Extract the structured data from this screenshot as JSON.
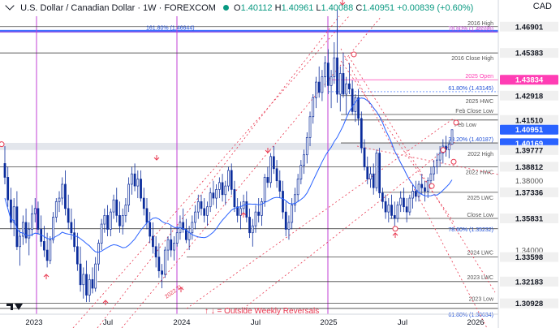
{
  "header": {
    "symbol": "U.S. Dollar / Canadian Dollar · 1W · FOREXCOM",
    "open_label": "O",
    "open": "1.40112",
    "high_label": "H",
    "high": "1.40961",
    "low_label": "L",
    "low": "1.40088",
    "close_label": "C",
    "close": "1.40951",
    "change": "+0.00839 (+0.60%)"
  },
  "currency": "CAD",
  "colors": {
    "up": "#0b2c9c",
    "down": "#0b2c9c",
    "ma": "#2962ff",
    "level_line": "#444444",
    "magenta": "#c23fd6",
    "red": "#e8374f",
    "blue_band": "#2962ff",
    "pink_tag": "#ff3db4",
    "blue_tag": "#2962ff"
  },
  "note": "↑ ↓ = Outside Weekly Reversals",
  "chart_data": {
    "type": "candlestick",
    "title": "U.S. Dollar / Canadian Dollar · 1W · FOREXCOM",
    "ylim": [
      1.303,
      1.475
    ],
    "x_ticks": [
      "2023",
      "Jul",
      "2024",
      "Jul",
      "2025",
      "Jul",
      "2026"
    ],
    "y_axis_labels": [
      "1.46901",
      "1.45383",
      "1.43834",
      "1.42918",
      "1.41510",
      "1.40951",
      "1.40169",
      "1.39777",
      "1.38812",
      "1.38000",
      "1.37336",
      "1.35831",
      "1.34000",
      "1.33598",
      "1.32183",
      "1.30928"
    ],
    "levels": [
      {
        "name": "2016 High",
        "value": 1.46901
      },
      {
        "name": "78.60% (1.46596)",
        "value": 1.46596
      },
      {
        "name": "161.80% (1.46644)",
        "value": 1.46644
      },
      {
        "name": "2016 Close High",
        "value": 1.45383
      },
      {
        "name": "2025 Open",
        "value": 1.43834
      },
      {
        "name": "61.80% (1.43145)",
        "value": 1.43145
      },
      {
        "name": "2025 HWC",
        "value": 1.42918
      },
      {
        "name": "Feb Close Low",
        "value": 1.4183
      },
      {
        "name": "Feb Low",
        "value": 1.4151
      },
      {
        "name": "38.20% (1.40187)",
        "value": 1.40187
      },
      {
        "name": "2022 High",
        "value": 1.39777
      },
      {
        "name": "2022 HWC",
        "value": 1.38812
      },
      {
        "name": "2025 LWC",
        "value": 1.37336
      },
      {
        "name": "Close Low",
        "value": 1.35831
      },
      {
        "name": "78.60% (1.35232)",
        "value": 1.35232
      },
      {
        "name": "2024 LWC",
        "value": 1.33598
      },
      {
        "name": "2023 LWC",
        "value": 1.32183
      },
      {
        "name": "2023 Low",
        "value": 1.30928
      },
      {
        "name": "61.80% (1.30634)",
        "value": 1.30634
      }
    ],
    "annotations": [
      "2022 TL",
      "↑ ↓ = Outside Weekly Reversals"
    ],
    "candles": [
      {
        "o": 1.39,
        "h": 1.4,
        "l": 1.378,
        "c": 1.382
      },
      {
        "o": 1.382,
        "h": 1.388,
        "l": 1.365,
        "c": 1.369
      },
      {
        "o": 1.369,
        "h": 1.376,
        "l": 1.352,
        "c": 1.356
      },
      {
        "o": 1.356,
        "h": 1.37,
        "l": 1.348,
        "c": 1.365
      },
      {
        "o": 1.365,
        "h": 1.374,
        "l": 1.34,
        "c": 1.342
      },
      {
        "o": 1.342,
        "h": 1.352,
        "l": 1.331,
        "c": 1.348
      },
      {
        "o": 1.348,
        "h": 1.36,
        "l": 1.343,
        "c": 1.356
      },
      {
        "o": 1.356,
        "h": 1.364,
        "l": 1.344,
        "c": 1.347
      },
      {
        "o": 1.347,
        "h": 1.356,
        "l": 1.337,
        "c": 1.352
      },
      {
        "o": 1.352,
        "h": 1.366,
        "l": 1.348,
        "c": 1.361
      },
      {
        "o": 1.361,
        "h": 1.37,
        "l": 1.356,
        "c": 1.364
      },
      {
        "o": 1.364,
        "h": 1.368,
        "l": 1.349,
        "c": 1.352
      },
      {
        "o": 1.352,
        "h": 1.36,
        "l": 1.342,
        "c": 1.345
      },
      {
        "o": 1.345,
        "h": 1.354,
        "l": 1.336,
        "c": 1.34
      },
      {
        "o": 1.34,
        "h": 1.35,
        "l": 1.33,
        "c": 1.334
      },
      {
        "o": 1.334,
        "h": 1.348,
        "l": 1.332,
        "c": 1.346
      },
      {
        "o": 1.346,
        "h": 1.362,
        "l": 1.344,
        "c": 1.359
      },
      {
        "o": 1.359,
        "h": 1.37,
        "l": 1.356,
        "c": 1.368
      },
      {
        "o": 1.368,
        "h": 1.374,
        "l": 1.362,
        "c": 1.37
      },
      {
        "o": 1.37,
        "h": 1.382,
        "l": 1.366,
        "c": 1.378
      },
      {
        "o": 1.378,
        "h": 1.386,
        "l": 1.36,
        "c": 1.364
      },
      {
        "o": 1.364,
        "h": 1.372,
        "l": 1.352,
        "c": 1.356
      },
      {
        "o": 1.356,
        "h": 1.364,
        "l": 1.346,
        "c": 1.35
      },
      {
        "o": 1.35,
        "h": 1.358,
        "l": 1.339,
        "c": 1.342
      },
      {
        "o": 1.342,
        "h": 1.35,
        "l": 1.328,
        "c": 1.332
      },
      {
        "o": 1.332,
        "h": 1.342,
        "l": 1.316,
        "c": 1.32
      },
      {
        "o": 1.32,
        "h": 1.33,
        "l": 1.312,
        "c": 1.326
      },
      {
        "o": 1.326,
        "h": 1.334,
        "l": 1.31,
        "c": 1.314
      },
      {
        "o": 1.314,
        "h": 1.326,
        "l": 1.31,
        "c": 1.323
      },
      {
        "o": 1.323,
        "h": 1.33,
        "l": 1.315,
        "c": 1.318
      },
      {
        "o": 1.318,
        "h": 1.336,
        "l": 1.316,
        "c": 1.332
      },
      {
        "o": 1.332,
        "h": 1.346,
        "l": 1.328,
        "c": 1.344
      },
      {
        "o": 1.344,
        "h": 1.358,
        "l": 1.34,
        "c": 1.355
      },
      {
        "o": 1.355,
        "h": 1.364,
        "l": 1.35,
        "c": 1.36
      },
      {
        "o": 1.36,
        "h": 1.366,
        "l": 1.348,
        "c": 1.352
      },
      {
        "o": 1.352,
        "h": 1.364,
        "l": 1.348,
        "c": 1.362
      },
      {
        "o": 1.362,
        "h": 1.372,
        "l": 1.358,
        "c": 1.369
      },
      {
        "o": 1.369,
        "h": 1.376,
        "l": 1.356,
        "c": 1.36
      },
      {
        "o": 1.36,
        "h": 1.368,
        "l": 1.35,
        "c": 1.354
      },
      {
        "o": 1.354,
        "h": 1.364,
        "l": 1.349,
        "c": 1.36
      },
      {
        "o": 1.36,
        "h": 1.37,
        "l": 1.356,
        "c": 1.366
      },
      {
        "o": 1.366,
        "h": 1.382,
        "l": 1.362,
        "c": 1.378
      },
      {
        "o": 1.378,
        "h": 1.388,
        "l": 1.372,
        "c": 1.384
      },
      {
        "o": 1.384,
        "h": 1.39,
        "l": 1.374,
        "c": 1.377
      },
      {
        "o": 1.377,
        "h": 1.386,
        "l": 1.37,
        "c": 1.381
      },
      {
        "o": 1.381,
        "h": 1.386,
        "l": 1.368,
        "c": 1.37
      },
      {
        "o": 1.37,
        "h": 1.376,
        "l": 1.36,
        "c": 1.364
      },
      {
        "o": 1.364,
        "h": 1.37,
        "l": 1.352,
        "c": 1.356
      },
      {
        "o": 1.356,
        "h": 1.362,
        "l": 1.344,
        "c": 1.348
      },
      {
        "o": 1.348,
        "h": 1.356,
        "l": 1.338,
        "c": 1.342
      },
      {
        "o": 1.342,
        "h": 1.348,
        "l": 1.33,
        "c": 1.336
      },
      {
        "o": 1.336,
        "h": 1.344,
        "l": 1.324,
        "c": 1.328
      },
      {
        "o": 1.328,
        "h": 1.332,
        "l": 1.318,
        "c": 1.326
      },
      {
        "o": 1.326,
        "h": 1.342,
        "l": 1.324,
        "c": 1.34
      },
      {
        "o": 1.34,
        "h": 1.348,
        "l": 1.334,
        "c": 1.346
      },
      {
        "o": 1.346,
        "h": 1.354,
        "l": 1.336,
        "c": 1.34
      },
      {
        "o": 1.34,
        "h": 1.348,
        "l": 1.334,
        "c": 1.344
      },
      {
        "o": 1.344,
        "h": 1.354,
        "l": 1.342,
        "c": 1.35
      },
      {
        "o": 1.35,
        "h": 1.36,
        "l": 1.346,
        "c": 1.356
      },
      {
        "o": 1.356,
        "h": 1.364,
        "l": 1.35,
        "c": 1.352
      },
      {
        "o": 1.352,
        "h": 1.358,
        "l": 1.344,
        "c": 1.346
      },
      {
        "o": 1.346,
        "h": 1.354,
        "l": 1.34,
        "c": 1.35
      },
      {
        "o": 1.35,
        "h": 1.36,
        "l": 1.346,
        "c": 1.356
      },
      {
        "o": 1.356,
        "h": 1.366,
        "l": 1.352,
        "c": 1.362
      },
      {
        "o": 1.362,
        "h": 1.372,
        "l": 1.358,
        "c": 1.368
      },
      {
        "o": 1.368,
        "h": 1.372,
        "l": 1.36,
        "c": 1.364
      },
      {
        "o": 1.364,
        "h": 1.37,
        "l": 1.356,
        "c": 1.36
      },
      {
        "o": 1.36,
        "h": 1.368,
        "l": 1.354,
        "c": 1.365
      },
      {
        "o": 1.365,
        "h": 1.376,
        "l": 1.362,
        "c": 1.373
      },
      {
        "o": 1.373,
        "h": 1.38,
        "l": 1.366,
        "c": 1.37
      },
      {
        "o": 1.37,
        "h": 1.378,
        "l": 1.364,
        "c": 1.375
      },
      {
        "o": 1.375,
        "h": 1.382,
        "l": 1.37,
        "c": 1.379
      },
      {
        "o": 1.379,
        "h": 1.384,
        "l": 1.368,
        "c": 1.372
      },
      {
        "o": 1.372,
        "h": 1.38,
        "l": 1.366,
        "c": 1.377
      },
      {
        "o": 1.377,
        "h": 1.388,
        "l": 1.374,
        "c": 1.386
      },
      {
        "o": 1.386,
        "h": 1.39,
        "l": 1.372,
        "c": 1.375
      },
      {
        "o": 1.375,
        "h": 1.38,
        "l": 1.362,
        "c": 1.365
      },
      {
        "o": 1.365,
        "h": 1.37,
        "l": 1.356,
        "c": 1.36
      },
      {
        "o": 1.36,
        "h": 1.368,
        "l": 1.352,
        "c": 1.364
      },
      {
        "o": 1.364,
        "h": 1.372,
        "l": 1.36,
        "c": 1.368
      },
      {
        "o": 1.368,
        "h": 1.374,
        "l": 1.356,
        "c": 1.359
      },
      {
        "o": 1.359,
        "h": 1.364,
        "l": 1.347,
        "c": 1.35
      },
      {
        "o": 1.35,
        "h": 1.358,
        "l": 1.342,
        "c": 1.354
      },
      {
        "o": 1.354,
        "h": 1.366,
        "l": 1.35,
        "c": 1.362
      },
      {
        "o": 1.362,
        "h": 1.37,
        "l": 1.356,
        "c": 1.36
      },
      {
        "o": 1.36,
        "h": 1.37,
        "l": 1.354,
        "c": 1.368
      },
      {
        "o": 1.368,
        "h": 1.384,
        "l": 1.365,
        "c": 1.382
      },
      {
        "o": 1.382,
        "h": 1.388,
        "l": 1.376,
        "c": 1.379
      },
      {
        "o": 1.379,
        "h": 1.396,
        "l": 1.376,
        "c": 1.394
      },
      {
        "o": 1.394,
        "h": 1.4,
        "l": 1.384,
        "c": 1.387
      },
      {
        "o": 1.387,
        "h": 1.392,
        "l": 1.376,
        "c": 1.38
      },
      {
        "o": 1.38,
        "h": 1.386,
        "l": 1.37,
        "c": 1.374
      },
      {
        "o": 1.374,
        "h": 1.38,
        "l": 1.358,
        "c": 1.362
      },
      {
        "o": 1.362,
        "h": 1.368,
        "l": 1.348,
        "c": 1.352
      },
      {
        "o": 1.352,
        "h": 1.36,
        "l": 1.346,
        "c": 1.356
      },
      {
        "o": 1.356,
        "h": 1.37,
        "l": 1.352,
        "c": 1.366
      },
      {
        "o": 1.366,
        "h": 1.376,
        "l": 1.362,
        "c": 1.372
      },
      {
        "o": 1.372,
        "h": 1.384,
        "l": 1.368,
        "c": 1.381
      },
      {
        "o": 1.381,
        "h": 1.392,
        "l": 1.378,
        "c": 1.389
      },
      {
        "o": 1.389,
        "h": 1.398,
        "l": 1.384,
        "c": 1.395
      },
      {
        "o": 1.395,
        "h": 1.408,
        "l": 1.39,
        "c": 1.405
      },
      {
        "o": 1.405,
        "h": 1.42,
        "l": 1.4,
        "c": 1.417
      },
      {
        "o": 1.417,
        "h": 1.43,
        "l": 1.413,
        "c": 1.428
      },
      {
        "o": 1.428,
        "h": 1.44,
        "l": 1.422,
        "c": 1.437
      },
      {
        "o": 1.437,
        "h": 1.446,
        "l": 1.428,
        "c": 1.431
      },
      {
        "o": 1.431,
        "h": 1.444,
        "l": 1.426,
        "c": 1.44
      },
      {
        "o": 1.44,
        "h": 1.452,
        "l": 1.434,
        "c": 1.448
      },
      {
        "o": 1.448,
        "h": 1.456,
        "l": 1.43,
        "c": 1.435
      },
      {
        "o": 1.435,
        "h": 1.444,
        "l": 1.422,
        "c": 1.44
      },
      {
        "o": 1.44,
        "h": 1.46,
        "l": 1.436,
        "c": 1.451
      },
      {
        "o": 1.451,
        "h": 1.4793,
        "l": 1.425,
        "c": 1.43
      },
      {
        "o": 1.43,
        "h": 1.446,
        "l": 1.42,
        "c": 1.442
      },
      {
        "o": 1.442,
        "h": 1.454,
        "l": 1.428,
        "c": 1.43
      },
      {
        "o": 1.43,
        "h": 1.44,
        "l": 1.418,
        "c": 1.436
      },
      {
        "o": 1.436,
        "h": 1.448,
        "l": 1.43,
        "c": 1.433
      },
      {
        "o": 1.433,
        "h": 1.438,
        "l": 1.418,
        "c": 1.42
      },
      {
        "o": 1.42,
        "h": 1.43,
        "l": 1.414,
        "c": 1.428
      },
      {
        "o": 1.428,
        "h": 1.433,
        "l": 1.412,
        "c": 1.416
      },
      {
        "o": 1.416,
        "h": 1.42,
        "l": 1.396,
        "c": 1.399
      },
      {
        "o": 1.399,
        "h": 1.404,
        "l": 1.386,
        "c": 1.388
      },
      {
        "o": 1.388,
        "h": 1.394,
        "l": 1.378,
        "c": 1.381
      },
      {
        "o": 1.381,
        "h": 1.388,
        "l": 1.376,
        "c": 1.384
      },
      {
        "o": 1.384,
        "h": 1.39,
        "l": 1.372,
        "c": 1.376
      },
      {
        "o": 1.376,
        "h": 1.398,
        "l": 1.374,
        "c": 1.396
      },
      {
        "o": 1.396,
        "h": 1.399,
        "l": 1.37,
        "c": 1.373
      },
      {
        "o": 1.373,
        "h": 1.376,
        "l": 1.364,
        "c": 1.368
      },
      {
        "o": 1.368,
        "h": 1.372,
        "l": 1.358,
        "c": 1.362
      },
      {
        "o": 1.362,
        "h": 1.37,
        "l": 1.356,
        "c": 1.366
      },
      {
        "o": 1.366,
        "h": 1.372,
        "l": 1.358,
        "c": 1.36
      },
      {
        "o": 1.36,
        "h": 1.368,
        "l": 1.3523,
        "c": 1.3583
      },
      {
        "o": 1.3583,
        "h": 1.368,
        "l": 1.356,
        "c": 1.366
      },
      {
        "o": 1.366,
        "h": 1.374,
        "l": 1.362,
        "c": 1.37
      },
      {
        "o": 1.37,
        "h": 1.376,
        "l": 1.362,
        "c": 1.365
      },
      {
        "o": 1.365,
        "h": 1.37,
        "l": 1.356,
        "c": 1.362
      },
      {
        "o": 1.362,
        "h": 1.372,
        "l": 1.36,
        "c": 1.37
      },
      {
        "o": 1.37,
        "h": 1.378,
        "l": 1.364,
        "c": 1.374
      },
      {
        "o": 1.374,
        "h": 1.38,
        "l": 1.368,
        "c": 1.371
      },
      {
        "o": 1.371,
        "h": 1.38,
        "l": 1.368,
        "c": 1.378
      },
      {
        "o": 1.378,
        "h": 1.384,
        "l": 1.372,
        "c": 1.376
      },
      {
        "o": 1.376,
        "h": 1.38,
        "l": 1.368,
        "c": 1.374
      },
      {
        "o": 1.374,
        "h": 1.382,
        "l": 1.37,
        "c": 1.38
      },
      {
        "o": 1.38,
        "h": 1.388,
        "l": 1.376,
        "c": 1.384
      },
      {
        "o": 1.384,
        "h": 1.392,
        "l": 1.38,
        "c": 1.388
      },
      {
        "o": 1.388,
        "h": 1.396,
        "l": 1.384,
        "c": 1.392
      },
      {
        "o": 1.392,
        "h": 1.4,
        "l": 1.388,
        "c": 1.396
      },
      {
        "o": 1.396,
        "h": 1.404,
        "l": 1.39,
        "c": 1.4
      },
      {
        "o": 1.4,
        "h": 1.406,
        "l": 1.394,
        "c": 1.398
      },
      {
        "o": 1.398,
        "h": 1.403,
        "l": 1.393,
        "c": 1.4011
      },
      {
        "o": 1.4011,
        "h": 1.4096,
        "l": 1.4009,
        "c": 1.4095
      }
    ]
  }
}
